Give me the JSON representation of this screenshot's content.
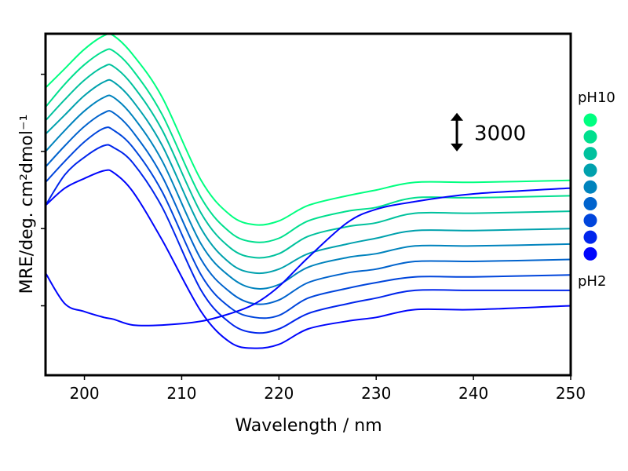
{
  "chart_data": {
    "type": "line",
    "title": "",
    "xlabel": "Wavelength / nm",
    "ylabel": "MRE/deg. cm²dmol⁻¹",
    "xlim": [
      196,
      250
    ],
    "ylim": [
      -11.6,
      6.1
    ],
    "x_ticks": [
      200,
      210,
      220,
      230,
      240,
      250
    ],
    "x_tick_labels": [
      "200",
      "210",
      "220",
      "230",
      "240",
      "250"
    ],
    "y_ticks": [
      -8,
      -4,
      0,
      4
    ],
    "y_tick_labels_shown": false,
    "grid": false,
    "scale_bar": {
      "label": "3000",
      "wavelength": 238.3,
      "from": 2.0,
      "to": 0.0
    },
    "legend": {
      "position": "right",
      "top_label": "pH10",
      "bottom_label": "pH2"
    },
    "x": [
      196,
      198,
      200,
      202,
      203,
      205,
      208,
      212,
      215,
      217.5,
      220,
      223,
      227,
      230,
      234,
      240,
      250
    ],
    "series": [
      {
        "color": "#00ff80",
        "values": [
          3.3,
          4.3,
          5.3,
          6.0,
          6.0,
          5.0,
          2.8,
          -1.5,
          -3.3,
          -3.8,
          -3.6,
          -2.8,
          -2.3,
          -2.0,
          -1.6,
          -1.6,
          -1.5
        ]
      },
      {
        "color": "#00df8e",
        "values": [
          2.3,
          3.5,
          4.5,
          5.2,
          5.2,
          4.2,
          1.9,
          -2.4,
          -4.2,
          -4.7,
          -4.5,
          -3.6,
          -3.1,
          -2.9,
          -2.4,
          -2.4,
          -2.3
        ]
      },
      {
        "color": "#00c19d",
        "values": [
          1.6,
          2.7,
          3.7,
          4.4,
          4.4,
          3.4,
          1.1,
          -3.2,
          -5.0,
          -5.5,
          -5.3,
          -4.4,
          -3.9,
          -3.7,
          -3.2,
          -3.2,
          -3.1
        ]
      },
      {
        "color": "#00a1ad",
        "values": [
          0.9,
          1.9,
          2.9,
          3.6,
          3.6,
          2.6,
          0.3,
          -4.0,
          -5.8,
          -6.3,
          -6.1,
          -5.3,
          -4.8,
          -4.5,
          -4.1,
          -4.1,
          -4.0
        ]
      },
      {
        "color": "#0083bd",
        "values": [
          0.0,
          1.1,
          2.1,
          2.8,
          2.8,
          1.8,
          -0.5,
          -4.8,
          -6.5,
          -7.1,
          -6.9,
          -6.0,
          -5.5,
          -5.3,
          -4.9,
          -4.9,
          -4.8
        ]
      },
      {
        "color": "#0063cd",
        "values": [
          -0.8,
          0.3,
          1.3,
          2.0,
          2.0,
          1.0,
          -1.3,
          -5.6,
          -7.3,
          -7.9,
          -7.7,
          -6.8,
          -6.3,
          -6.1,
          -5.7,
          -5.7,
          -5.6
        ]
      },
      {
        "color": "#0045dc",
        "values": [
          -1.6,
          -0.5,
          0.5,
          1.2,
          1.1,
          0.2,
          -2.1,
          -6.4,
          -8.1,
          -8.6,
          -8.5,
          -7.6,
          -7.1,
          -6.8,
          -6.5,
          -6.5,
          -6.4
        ]
      },
      {
        "color": "#0025ec",
        "values": [
          -2.8,
          -1.2,
          -0.3,
          0.3,
          0.2,
          -0.6,
          -2.9,
          -7.2,
          -8.9,
          -9.4,
          -9.2,
          -8.4,
          -7.9,
          -7.6,
          -7.2,
          -7.2,
          -7.2
        ]
      },
      {
        "color": "#0005fc",
        "values": [
          -2.8,
          -1.9,
          -1.4,
          -1.0,
          -1.1,
          -2.1,
          -4.6,
          -8.3,
          -9.9,
          -10.2,
          -10.0,
          -9.2,
          -8.8,
          -8.6,
          -8.2,
          -8.2,
          -8.0
        ]
      },
      {
        "color": "#0005fc",
        "values": [
          -6.3,
          -7.9,
          -8.3,
          -8.6,
          -8.7,
          -9.0,
          -9.0,
          -8.8,
          -8.4,
          -7.9,
          -7.0,
          -5.5,
          -3.7,
          -3.0,
          -2.6,
          -2.2,
          -1.9
        ]
      }
    ]
  }
}
